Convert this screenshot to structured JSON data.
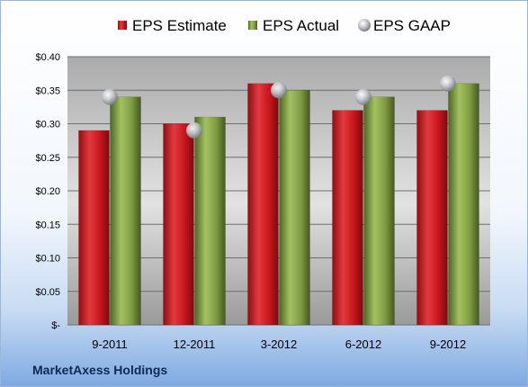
{
  "company": "MarketAxess Holdings",
  "chart_data": {
    "type": "bar",
    "categories": [
      "9-2011",
      "12-2011",
      "3-2012",
      "6-2012",
      "9-2012"
    ],
    "series": [
      {
        "name": "EPS Estimate",
        "type": "bar",
        "color": "#c8161d",
        "values": [
          0.29,
          0.3,
          0.36,
          0.32,
          0.32
        ]
      },
      {
        "name": "EPS Actual",
        "type": "bar",
        "color": "#77933c",
        "values": [
          0.34,
          0.31,
          0.35,
          0.34,
          0.36
        ]
      },
      {
        "name": "EPS GAAP",
        "type": "marker",
        "color": "#b9bcc2",
        "values": [
          0.34,
          0.29,
          0.35,
          0.34,
          0.36
        ]
      }
    ],
    "ylim": [
      0,
      0.4
    ],
    "yticks": [
      {
        "value": 0.0,
        "label": "$-"
      },
      {
        "value": 0.05,
        "label": "$0.05"
      },
      {
        "value": 0.1,
        "label": "$0.10"
      },
      {
        "value": 0.15,
        "label": "$0.15"
      },
      {
        "value": 0.2,
        "label": "$0.20"
      },
      {
        "value": 0.25,
        "label": "$0.25"
      },
      {
        "value": 0.3,
        "label": "$0.30"
      },
      {
        "value": 0.35,
        "label": "$0.35"
      },
      {
        "value": 0.4,
        "label": "$0.40"
      }
    ],
    "grid": true,
    "legend_position": "top"
  }
}
